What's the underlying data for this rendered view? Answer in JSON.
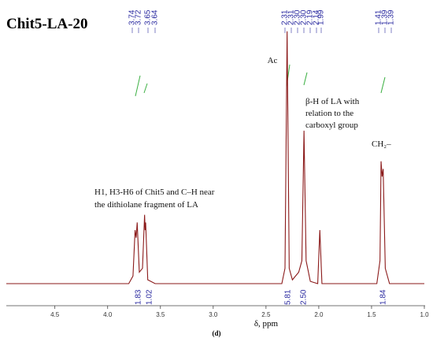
{
  "chart_data": {
    "type": "line",
    "title": "Chit5-LA-20",
    "xlabel": "δ, ppm",
    "caption": "(d)",
    "x": [
      4.96,
      3.8,
      3.76,
      3.74,
      3.73,
      3.72,
      3.7,
      3.67,
      3.65,
      3.645,
      3.64,
      3.62,
      3.55,
      2.35,
      2.32,
      2.3,
      2.28,
      2.25,
      2.19,
      2.16,
      2.14,
      2.12,
      2.08,
      2.01,
      1.99,
      1.97,
      1.45,
      1.42,
      1.41,
      1.4,
      1.39,
      1.37,
      1.33,
      1.0
    ],
    "series": [
      {
        "color": "#8b1a1a",
        "values": [
          0,
          0,
          10,
          70,
          60,
          80,
          15,
          20,
          90,
          70,
          80,
          5,
          0,
          0,
          20,
          330,
          20,
          5,
          15,
          30,
          200,
          30,
          3,
          0,
          70,
          0,
          0,
          30,
          160,
          140,
          150,
          20,
          0,
          0
        ]
      }
    ],
    "xlim": [
      4.96,
      1.0
    ],
    "ylim": [
      0,
      340
    ],
    "xticks": [
      4.5,
      {
        "value": 4.0,
        "label": "4.0"
      },
      3.5,
      {
        "value": 3.0,
        "label": "3.0"
      },
      2.5,
      {
        "value": 2.0,
        "label": "2.0"
      },
      1.5,
      {
        "value": 1.0,
        "label": "1.0"
      }
    ],
    "peak_labels": [
      "3.74",
      "3.72",
      "3.65",
      "3.64",
      "2.31",
      "2.31",
      "2.30",
      "2.30",
      "2.19",
      "2.14",
      "1.99",
      "1.41",
      "1.39",
      "1.39"
    ],
    "integrals": [
      "1.83",
      "1.02",
      "5.81",
      "2.50",
      "1.84"
    ],
    "annotations": {
      "ac": "Ac",
      "beta": [
        "β-H of LA with",
        "relation to the",
        "carboxyl group"
      ],
      "ch2": "CH₂–",
      "h1": [
        "H1, H3-H6 of Chit5 and C–H near",
        "the dithiolane fragment of LA"
      ]
    }
  }
}
